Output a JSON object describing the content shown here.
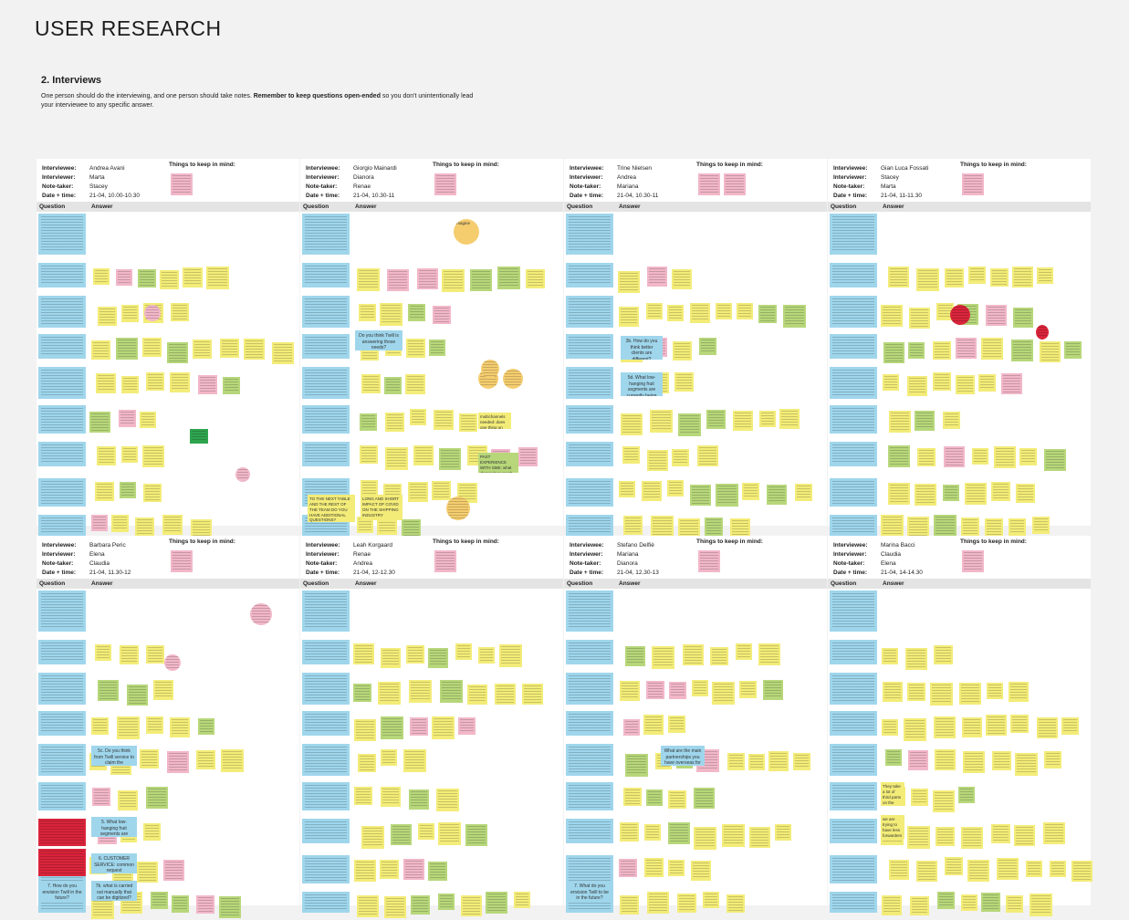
{
  "page_title": "USER RESEARCH",
  "section_title": "2. Interviews",
  "intro": {
    "text_before": "One person should do the interviewing, and one person should take notes. ",
    "emphasis": "Remember to keep questions open-ended",
    "text_after": " so you don't unintentionally lead your interviewee to any specific answer."
  },
  "labels": {
    "interviewee": "Interviewee:",
    "interviewer": "Interviewer:",
    "note_taker": "Note-taker:",
    "date_time": "Date + time:",
    "things_to_keep": "Things to keep in mind:",
    "question_col": "Question",
    "answer_col": "Answer"
  },
  "panels": [
    {
      "interviewee": "Andrea Avani",
      "interviewer": "Marta",
      "note_taker": "Stacey",
      "date_time": "21-04, 10.00-10.30"
    },
    {
      "interviewee": "Giorgio Mainardi",
      "interviewer": "Dianora",
      "note_taker": "Renae",
      "date_time": "21-04, 10.30-11"
    },
    {
      "interviewee": "Trine Nielsen",
      "interviewer": "Andrea",
      "note_taker": "Mariana",
      "date_time": "21-04, 10.30-11"
    },
    {
      "interviewee": "Gian Luca Fossati",
      "interviewer": "Stacey",
      "note_taker": "Marta",
      "date_time": "21-04, 11-11.30"
    },
    {
      "interviewee": "Barbara Peric",
      "interviewer": "Elena",
      "note_taker": "Claudia",
      "date_time": "21-04, 11.30-12"
    },
    {
      "interviewee": "Leah Korgaard",
      "interviewer": "Renae",
      "note_taker": "Andrea",
      "date_time": "21-04, 12-12.30"
    },
    {
      "interviewee": "Stefano Delfiè",
      "interviewer": "Mariana",
      "note_taker": "Dianora",
      "date_time": "21-04, 12.30-13"
    },
    {
      "interviewee": "Marina Bacci",
      "interviewer": "Claudia",
      "note_taker": "Elena",
      "date_time": "21-04, 14-14.30"
    }
  ],
  "notes": {
    "imagine": "Imagine",
    "lqs": "Do you think Twill is answering those needs?",
    "p3_lqs": "3b. How do you think better clients are different?",
    "p3_lq2": "5d. What low-hanging fruit segments are currently being underserved?",
    "p6_lq": "5c. Do you think from Twill service to claim the relationship with Maersk?",
    "p6_5d": "5. What low-hanging fruit segments are currently being underserved?",
    "p6_cs": "6. CUSTOMER SERVICE: common request",
    "p6_7b": "7b. what is carried out manually that can be digitized?",
    "p6_7a": "7. How do you envision Twill in the future?",
    "p7_7": "7. What do you envision Twill to be in the future?",
    "p3_note": "Things to keep in mind",
    "alone": "They take a lot of third parts on the process to plan",
    "alone2": "we are trying to have less forwarders",
    "boxes": "LONG AND SHORT IMPACT OF COVID ON THE SHIPPING INDUSTRY",
    "boxes2": "TO THE NEXT TABLE AND THE REST OF THE TEAM DO YOU HAVE ADDITIONAL QUESTIONS?",
    "past": "PAST EXPERIENCE WITH SME: what channels to reach them",
    "multi": "multichannels needed: does one thing on many channels and consider it to be done",
    "rnd": "Imagine",
    "p7_lq": "What are the main partnerships you have overseas for possible expansions?"
  }
}
